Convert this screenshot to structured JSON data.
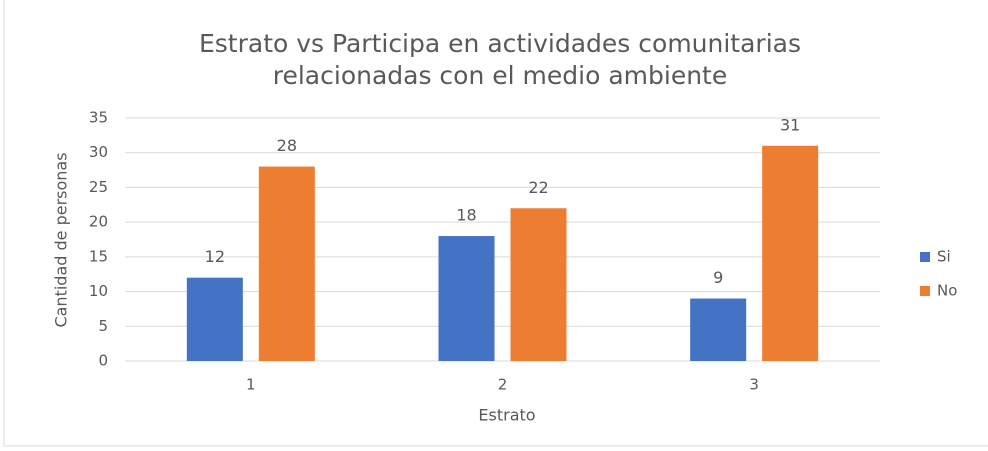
{
  "chart_data": {
    "type": "bar",
    "title": [
      "Estrato vs Participa en actividades comunitarias",
      "relacionadas con el medio ambiente"
    ],
    "x_label": "Estrato",
    "y_label": "Cantidad de personas",
    "categories": [
      "1",
      "2",
      "3"
    ],
    "series": [
      {
        "name": "Si",
        "color": "#4472c4",
        "values": [
          12,
          18,
          9
        ]
      },
      {
        "name": "No",
        "color": "#ed7d31",
        "values": [
          28,
          22,
          31
        ]
      }
    ],
    "ylim": [
      0,
      35
    ],
    "yticks": [
      0,
      5,
      10,
      15,
      20,
      25,
      30,
      35
    ],
    "grid": true,
    "legend": "right",
    "data_labels": true
  }
}
